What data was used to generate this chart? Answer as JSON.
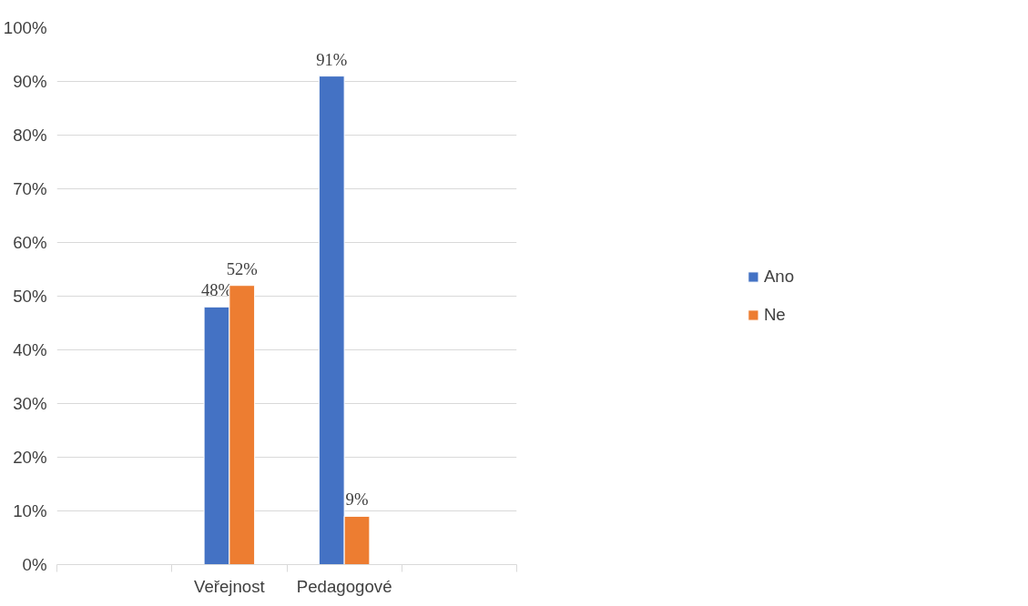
{
  "chart_data": {
    "type": "bar",
    "categories": [
      null,
      "Veřejnost",
      "Pedagogové",
      null
    ],
    "series": [
      {
        "name": "Ano",
        "color": "#4472c4",
        "values": [
          null,
          48,
          91,
          null
        ],
        "value_labels": [
          null,
          "48%",
          "91%",
          null
        ]
      },
      {
        "name": "Ne",
        "color": "#ed7d31",
        "values": [
          null,
          52,
          9,
          null
        ],
        "value_labels": [
          null,
          "52%",
          "9%",
          null
        ]
      }
    ],
    "ylim": [
      0,
      100
    ],
    "yticks": [
      {
        "value": 0,
        "label": "0%"
      },
      {
        "value": 10,
        "label": "10%"
      },
      {
        "value": 20,
        "label": "20%"
      },
      {
        "value": 30,
        "label": "30%"
      },
      {
        "value": 40,
        "label": "40%"
      },
      {
        "value": 50,
        "label": "50%"
      },
      {
        "value": 60,
        "label": "60%"
      },
      {
        "value": 70,
        "label": "70%"
      },
      {
        "value": 80,
        "label": "80%"
      },
      {
        "value": 90,
        "label": "90%"
      },
      {
        "value": 100,
        "label": "100%"
      }
    ],
    "grid": "y",
    "legend": "right"
  }
}
